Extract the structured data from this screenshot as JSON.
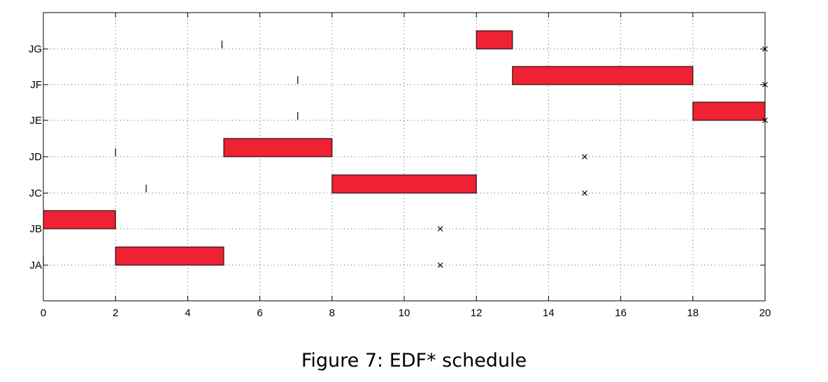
{
  "chart_data": {
    "type": "gantt",
    "xlim": [
      0,
      20
    ],
    "x_ticks": [
      0,
      2,
      4,
      6,
      8,
      10,
      12,
      14,
      16,
      18,
      20
    ],
    "grid": true,
    "jobs": [
      "JA",
      "JB",
      "JC",
      "JD",
      "JE",
      "JF",
      "JG"
    ],
    "bar_color": "#ee2233",
    "bars": [
      {
        "job": "JA",
        "start": 2,
        "end": 5
      },
      {
        "job": "JB",
        "start": 0,
        "end": 2
      },
      {
        "job": "JC",
        "start": 8,
        "end": 12
      },
      {
        "job": "JD",
        "start": 5,
        "end": 8
      },
      {
        "job": "JE",
        "start": 18,
        "end": 20
      },
      {
        "job": "JF",
        "start": 13,
        "end": 18
      },
      {
        "job": "JG",
        "start": 12,
        "end": 13
      }
    ],
    "release_markers": [
      {
        "job": "JA",
        "x": 0
      },
      {
        "job": "JC",
        "x": 2.85
      },
      {
        "job": "JD",
        "x": 2
      },
      {
        "job": "JE",
        "x": 7.05
      },
      {
        "job": "JF",
        "x": 7.05
      },
      {
        "job": "JG",
        "x": 4.95
      }
    ],
    "deadline_markers": [
      {
        "job": "JA",
        "x": 11
      },
      {
        "job": "JB",
        "x": 11
      },
      {
        "job": "JC",
        "x": 15
      },
      {
        "job": "JD",
        "x": 15
      },
      {
        "job": "JE",
        "x": 20
      },
      {
        "job": "JF",
        "x": 20
      },
      {
        "job": "JG",
        "x": 20
      }
    ]
  },
  "caption": "Figure 7:  EDF* schedule"
}
